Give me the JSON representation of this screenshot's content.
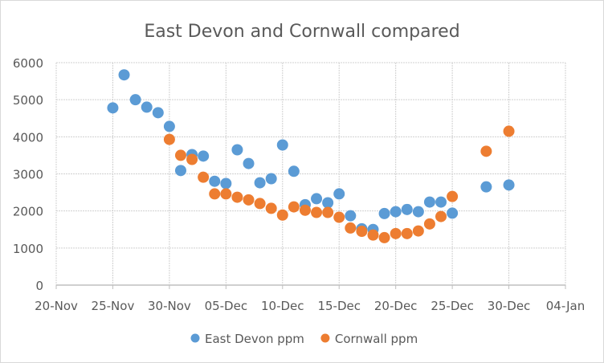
{
  "chart_data": {
    "type": "scatter",
    "title": "East Devon and Cornwall compared",
    "xlabel": "",
    "ylabel": "",
    "x_ticks": [
      "20-Nov",
      "25-Nov",
      "30-Nov",
      "05-Dec",
      "10-Dec",
      "15-Dec",
      "20-Dec",
      "25-Dec",
      "30-Dec",
      "04-Jan"
    ],
    "y_ticks": [
      0,
      1000,
      2000,
      3000,
      4000,
      5000,
      6000
    ],
    "ylim": [
      0,
      6000
    ],
    "xlim": [
      "20-Nov",
      "04-Jan"
    ],
    "grid": true,
    "legend_placement": "bottom",
    "series": [
      {
        "name": "East Devon ppm",
        "color": "#5B9BD5",
        "points": [
          [
            "25-Nov",
            4780
          ],
          [
            "26-Nov",
            5670
          ],
          [
            "27-Nov",
            5000
          ],
          [
            "28-Nov",
            4800
          ],
          [
            "29-Nov",
            4650
          ],
          [
            "30-Nov",
            4280
          ],
          [
            "01-Dec",
            3090
          ],
          [
            "02-Dec",
            3520
          ],
          [
            "03-Dec",
            3480
          ],
          [
            "04-Dec",
            2800
          ],
          [
            "05-Dec",
            2740
          ],
          [
            "06-Dec",
            3650
          ],
          [
            "07-Dec",
            3280
          ],
          [
            "08-Dec",
            2760
          ],
          [
            "09-Dec",
            2870
          ],
          [
            "10-Dec",
            3780
          ],
          [
            "11-Dec",
            3070
          ],
          [
            "12-Dec",
            2170
          ],
          [
            "13-Dec",
            2330
          ],
          [
            "14-Dec",
            2220
          ],
          [
            "15-Dec",
            2460
          ],
          [
            "16-Dec",
            1870
          ],
          [
            "17-Dec",
            1520
          ],
          [
            "18-Dec",
            1500
          ],
          [
            "19-Dec",
            1930
          ],
          [
            "20-Dec",
            1980
          ],
          [
            "21-Dec",
            2040
          ],
          [
            "22-Dec",
            1980
          ],
          [
            "23-Dec",
            2240
          ],
          [
            "24-Dec",
            2240
          ],
          [
            "25-Dec",
            1940
          ],
          [
            "28-Dec",
            2650
          ],
          [
            "30-Dec",
            2700
          ]
        ]
      },
      {
        "name": "Cornwall ppm",
        "color": "#ED7D31",
        "points": [
          [
            "30-Nov",
            3930
          ],
          [
            "01-Dec",
            3500
          ],
          [
            "02-Dec",
            3390
          ],
          [
            "03-Dec",
            2910
          ],
          [
            "04-Dec",
            2460
          ],
          [
            "05-Dec",
            2460
          ],
          [
            "06-Dec",
            2370
          ],
          [
            "07-Dec",
            2300
          ],
          [
            "08-Dec",
            2200
          ],
          [
            "09-Dec",
            2070
          ],
          [
            "10-Dec",
            1890
          ],
          [
            "11-Dec",
            2110
          ],
          [
            "12-Dec",
            2020
          ],
          [
            "13-Dec",
            1960
          ],
          [
            "14-Dec",
            1960
          ],
          [
            "15-Dec",
            1830
          ],
          [
            "16-Dec",
            1540
          ],
          [
            "17-Dec",
            1450
          ],
          [
            "18-Dec",
            1350
          ],
          [
            "19-Dec",
            1280
          ],
          [
            "20-Dec",
            1390
          ],
          [
            "21-Dec",
            1390
          ],
          [
            "22-Dec",
            1460
          ],
          [
            "23-Dec",
            1650
          ],
          [
            "24-Dec",
            1850
          ],
          [
            "25-Dec",
            2390
          ],
          [
            "28-Dec",
            3610
          ],
          [
            "30-Dec",
            4150
          ]
        ]
      }
    ]
  }
}
